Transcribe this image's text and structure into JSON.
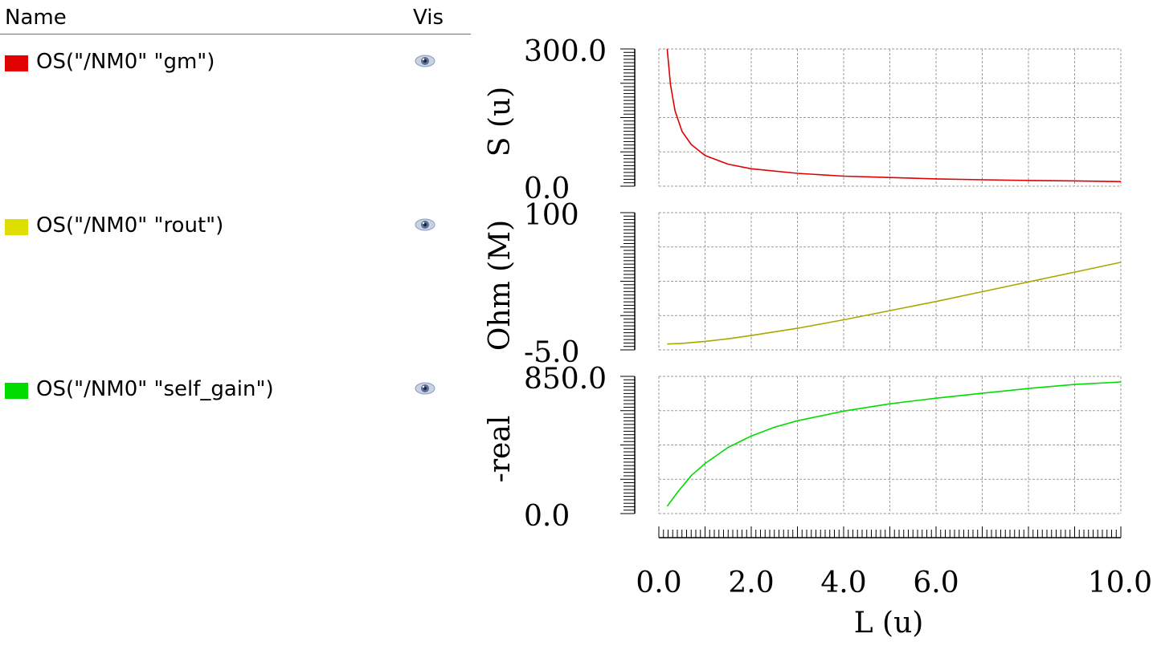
{
  "legend": {
    "header_name": "Name",
    "header_vis": "Vis",
    "rows": [
      {
        "label": "OS(\"/NM0\" \"gm\")",
        "color": "#e00000",
        "visibility_icon": "eye-icon"
      },
      {
        "label": "OS(\"/NM0\" \"rout\")",
        "color": "#dede00",
        "visibility_icon": "eye-icon"
      },
      {
        "label": "OS(\"/NM0\" \"self_gain\")",
        "color": "#00dc00",
        "visibility_icon": "eye-icon"
      }
    ]
  },
  "chart_data": [
    {
      "type": "line",
      "ylabel": "S (u)",
      "ylim": [
        0.0,
        300.0
      ],
      "ytick_labels": [
        "300.0",
        "0.0"
      ],
      "xlim": [
        0,
        10
      ],
      "color": "#e00000",
      "series": [
        {
          "name": "OS(\"/NM0\" \"gm\")",
          "x": [
            0.18,
            0.25,
            0.35,
            0.5,
            0.7,
            1.0,
            1.5,
            2.0,
            3.0,
            4.0,
            5.0,
            6.0,
            7.0,
            8.0,
            9.0,
            10.0
          ],
          "values": [
            300,
            223,
            165,
            120,
            91,
            67,
            48,
            38,
            28,
            22,
            19,
            16,
            14,
            12.5,
            11.5,
            10
          ]
        }
      ]
    },
    {
      "type": "line",
      "ylabel": "Ohm (M)",
      "ylim": [
        -5.0,
        100.0
      ],
      "ytick_labels": [
        "100",
        "-5.0"
      ],
      "xlim": [
        0,
        10
      ],
      "color": "#a8a800",
      "series": [
        {
          "name": "OS(\"/NM0\" \"rout\")",
          "x": [
            0.18,
            0.5,
            1.0,
            1.5,
            2.0,
            3.0,
            4.0,
            5.0,
            6.0,
            7.0,
            8.0,
            9.0,
            10.0
          ],
          "values": [
            -0.5,
            0.0,
            1.5,
            3.5,
            6.0,
            11.5,
            18.0,
            25.0,
            32.0,
            39.5,
            47.0,
            54.5,
            62.0
          ]
        }
      ]
    },
    {
      "type": "line",
      "ylabel": "-real",
      "ylim": [
        0.0,
        850.0
      ],
      "ytick_labels": [
        "850.0",
        "0.0"
      ],
      "xlim": [
        0,
        10
      ],
      "xlabel": "L (u)",
      "xtick_labels": [
        "0.0",
        "2.0",
        "4.0",
        "6.0",
        "10.0"
      ],
      "xtick_values": [
        0,
        2,
        4,
        6,
        10
      ],
      "color": "#00dc00",
      "series": [
        {
          "name": "OS(\"/NM0\" \"self_gain\")",
          "x": [
            0.18,
            0.4,
            0.7,
            1.0,
            1.5,
            2.0,
            2.5,
            3.0,
            4.0,
            5.0,
            6.0,
            7.0,
            8.0,
            9.0,
            10.0
          ],
          "values": [
            45,
            130,
            235,
            310,
            410,
            480,
            535,
            575,
            635,
            680,
            715,
            745,
            775,
            800,
            815
          ]
        }
      ]
    }
  ]
}
